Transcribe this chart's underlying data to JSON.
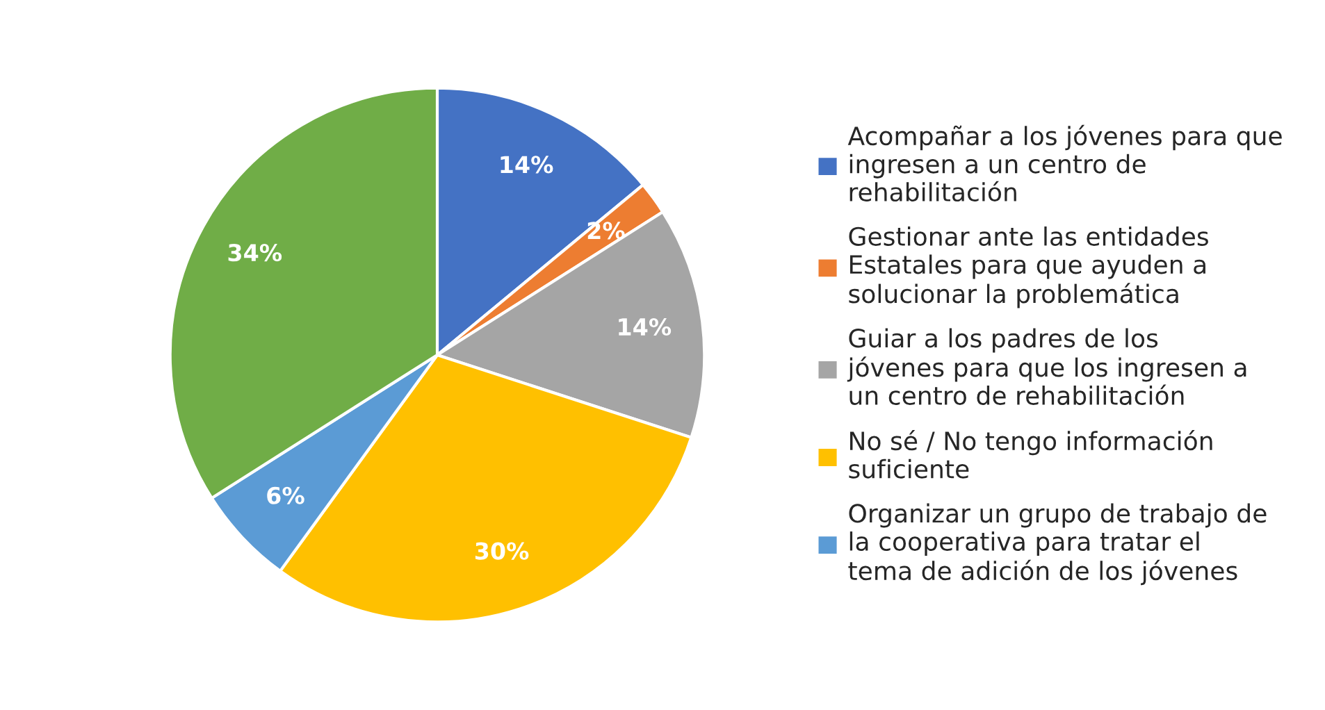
{
  "chart_data": {
    "type": "pie",
    "categories": [
      "Acompañar a los jóvenes para que ingresen a un centro de rehabilitación",
      "Gestionar ante las entidades Estatales para que ayuden a solucionar la problemática",
      "Guiar a los padres de los jóvenes para que los ingresen a un centro de rehabilitación",
      "No sé / No tengo información suficiente",
      "Organizar un grupo de trabajo de la cooperativa para tratar el tema de adición de los jóvenes",
      null
    ],
    "values": [
      14,
      2,
      14,
      30,
      6,
      34
    ],
    "value_labels": [
      "14%",
      "2%",
      "14%",
      "30%",
      "6%",
      "34%"
    ],
    "colors": [
      "#4472c4",
      "#ed7d31",
      "#a5a5a5",
      "#ffc000",
      "#5b9bd5",
      "#70ad47"
    ],
    "legend": "right"
  }
}
